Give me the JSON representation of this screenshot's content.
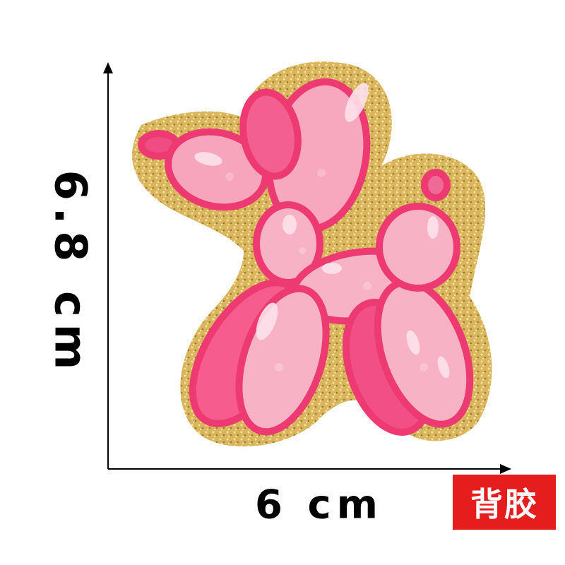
{
  "dimensions": {
    "height_label": "6.8 cm",
    "width_label": "6 cm"
  },
  "badge": {
    "text": "背胶",
    "color": "#e61d1d"
  },
  "product": {
    "subject": "balloon-dog-chenille-patch",
    "colors": {
      "balloon_outline": "#ef3f78",
      "balloon_fill": "#f7a7be",
      "highlight": "#fde3ec",
      "glitter_border": "#d4b25a"
    }
  }
}
